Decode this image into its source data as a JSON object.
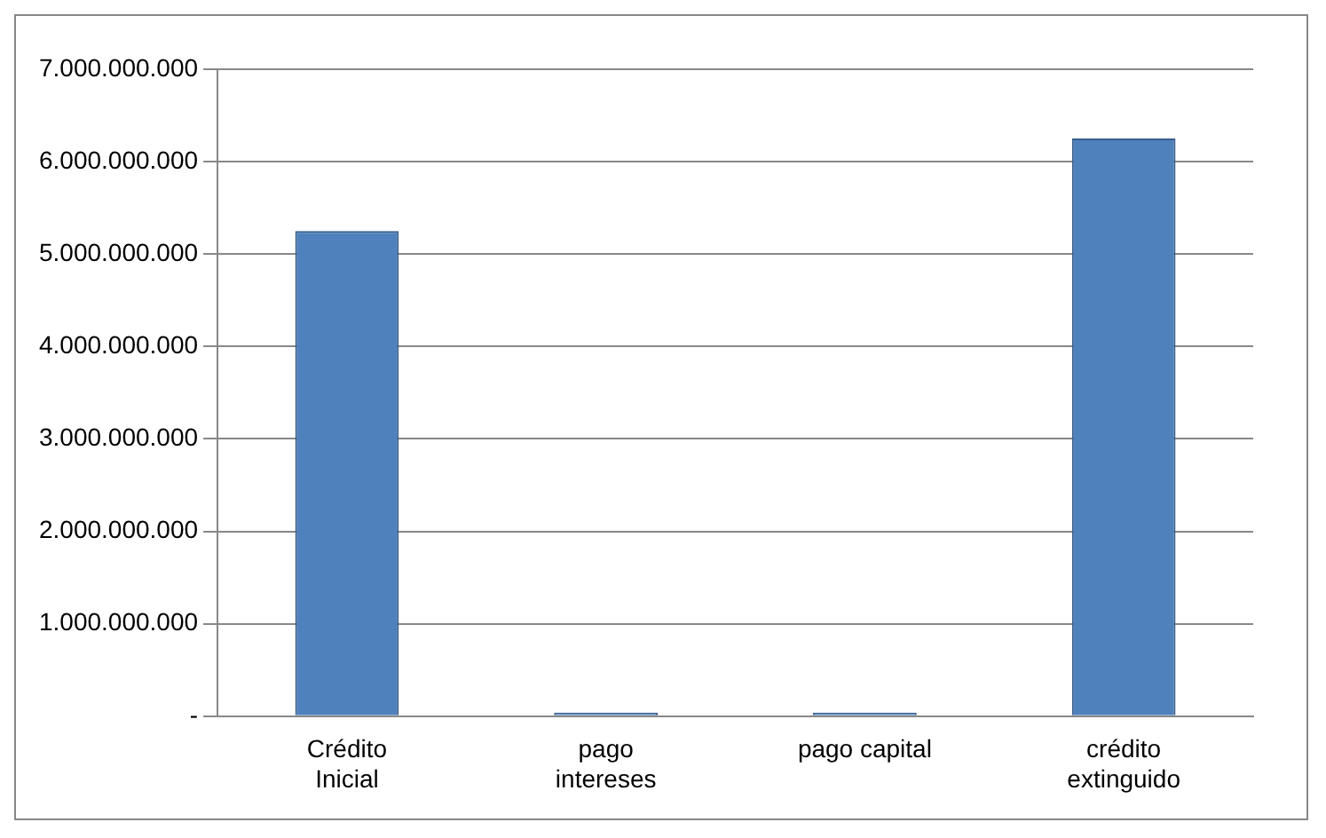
{
  "chart_data": {
    "type": "bar",
    "categories": [
      "Crédito\nInicial",
      "pago\nintereses",
      "pago capital",
      "crédito\nextinguido"
    ],
    "values": [
      5250000000,
      0,
      0,
      6250000000
    ],
    "color": "#4f81bd",
    "ylim": [
      0,
      7000000000
    ],
    "yticks": [
      {
        "value": 0,
        "label": "-"
      },
      {
        "value": 1000000000,
        "label": "1.000.000.000"
      },
      {
        "value": 2000000000,
        "label": "2.000.000.000"
      },
      {
        "value": 3000000000,
        "label": "3.000.000.000"
      },
      {
        "value": 4000000000,
        "label": "4.000.000.000"
      },
      {
        "value": 5000000000,
        "label": "5.000.000.000"
      },
      {
        "value": 6000000000,
        "label": "6.000.000.000"
      },
      {
        "value": 7000000000,
        "label": "7.000.000.000"
      }
    ],
    "grid": "y",
    "legend": false
  }
}
